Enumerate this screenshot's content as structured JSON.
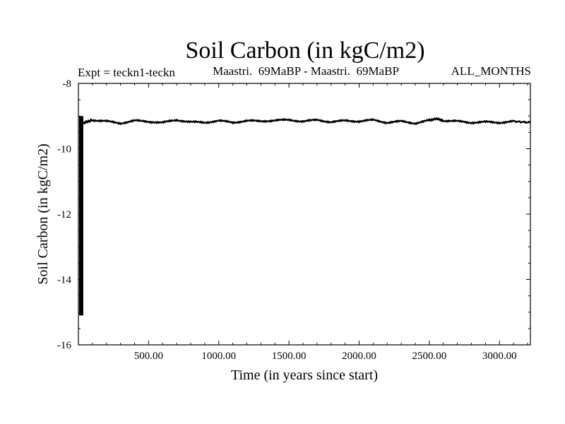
{
  "chart_data": {
    "type": "line",
    "title": "Soil Carbon (in kgC/m2)",
    "subtitle_left": "Expt = teckn1-teckn",
    "subtitle_center": "Maastri.  69MaBP - Maastri.  69MaBP",
    "subtitle_right": "ALL_MONTHS",
    "xlabel": "Time (in years since start)",
    "ylabel": "Soil Carbon (in kgC/m2)",
    "xlim": [
      0,
      3220
    ],
    "ylim": [
      -16,
      -8
    ],
    "x_tick_labels": [
      "500.00",
      "1000.00",
      "1500.00",
      "2000.00",
      "2500.00",
      "3000.00"
    ],
    "x_ticks": [
      500,
      1000,
      1500,
      2000,
      2500,
      3000
    ],
    "y_tick_labels": [
      "-8",
      "-10",
      "-12",
      "-14",
      "-16"
    ],
    "y_ticks": [
      -8,
      -10,
      -12,
      -14,
      -16
    ],
    "grid": false,
    "series": [
      {
        "color": "#000000",
        "spinup_band": {
          "x_range": [
            0,
            30
          ],
          "y_range": [
            -15.1,
            -9.0
          ]
        },
        "x": [
          30,
          100,
          200,
          300,
          400,
          500,
          600,
          700,
          800,
          900,
          1000,
          1100,
          1200,
          1300,
          1400,
          1500,
          1600,
          1700,
          1800,
          1900,
          2000,
          2100,
          2200,
          2300,
          2400,
          2500,
          2550,
          2600,
          2700,
          2800,
          2900,
          3000,
          3100,
          3220
        ],
        "values": [
          -9.22,
          -9.12,
          -9.16,
          -9.22,
          -9.14,
          -9.17,
          -9.2,
          -9.12,
          -9.18,
          -9.2,
          -9.14,
          -9.2,
          -9.14,
          -9.16,
          -9.13,
          -9.12,
          -9.16,
          -9.12,
          -9.18,
          -9.14,
          -9.16,
          -9.12,
          -9.2,
          -9.16,
          -9.22,
          -9.13,
          -9.08,
          -9.14,
          -9.16,
          -9.2,
          -9.18,
          -9.2,
          -9.16,
          -9.2
        ]
      }
    ]
  }
}
